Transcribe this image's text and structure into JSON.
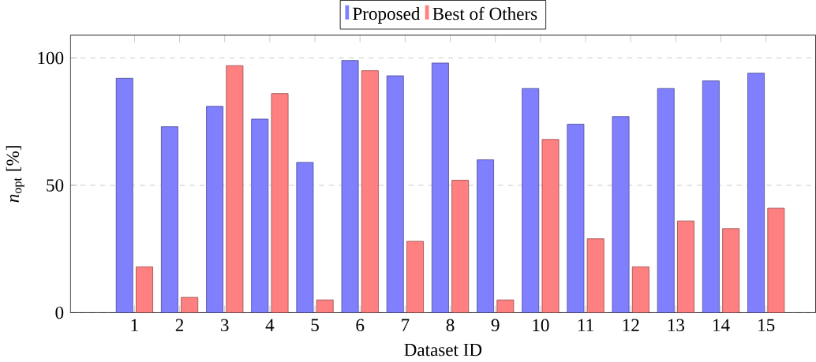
{
  "chart_data": {
    "type": "bar",
    "xlabel": "Dataset ID",
    "ylabel": "*n*$_{opt}$ [%]",
    "categories": [
      "1",
      "2",
      "3",
      "4",
      "5",
      "6",
      "7",
      "8",
      "9",
      "10",
      "11",
      "12",
      "13",
      "14",
      "15"
    ],
    "series": [
      {
        "name": "Proposed",
        "color": "#8080ff",
        "values": [
          92,
          73,
          81,
          76,
          59,
          99,
          93,
          98,
          60,
          88,
          74,
          77,
          88,
          91,
          94
        ]
      },
      {
        "name": "Best of Others",
        "color": "#ff8080",
        "values": [
          18,
          6,
          97,
          86,
          5,
          95,
          28,
          52,
          5,
          68,
          29,
          18,
          36,
          33,
          41
        ]
      }
    ],
    "ylim": [
      0,
      109
    ],
    "yticks": [
      0,
      50,
      100
    ],
    "grid": "y",
    "legend": "top"
  }
}
